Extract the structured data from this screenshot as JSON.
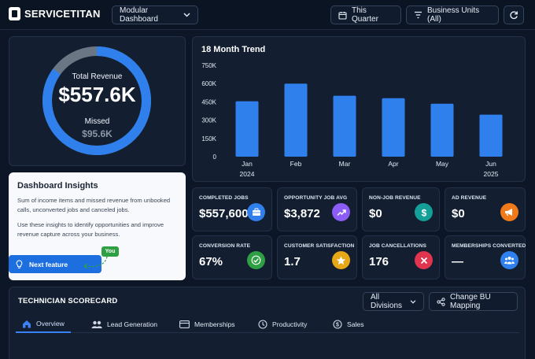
{
  "app": {
    "logo_text": "SERVICETITAN"
  },
  "header": {
    "dashboard_select": "Modular Dashboard",
    "date_filter": "This Quarter",
    "bu_filter": "Business Units (All)"
  },
  "revenue": {
    "total_label": "Total Revenue",
    "total_value": "$557.6K",
    "missed_label": "Missed",
    "missed_value": "$95.6K",
    "ring_fraction_captured": 0.85,
    "colors": {
      "captured": "#2f80ed",
      "missed": "#6b7685"
    }
  },
  "insights": {
    "title": "Dashboard Insights",
    "para1": "Sum of income items and missed revenue from unbooked calls, unconverted jobs and canceled jobs.",
    "para2": "Use these insights to identify opportunities and improve revenue capture across your business.",
    "button_label": "Next feature",
    "badge": "You"
  },
  "chart_data": {
    "type": "bar",
    "title": "18 Month Trend",
    "categories": [
      "Jan",
      "Feb",
      "Mar",
      "Apr",
      "May",
      "Jun"
    ],
    "category_years": [
      "2024",
      "",
      "",
      "",
      "",
      "2025"
    ],
    "values": [
      455,
      600,
      500,
      480,
      435,
      345
    ],
    "yticks": [
      "0",
      "150K",
      "300K",
      "450K",
      "600K",
      "750K"
    ],
    "ylim": [
      0,
      750
    ],
    "grid": false,
    "color": "#2f80ed"
  },
  "metrics": [
    {
      "label": "COMPLETED JOBS",
      "value": "$557,600",
      "icon": "briefcase-icon",
      "color": "#2f80ed"
    },
    {
      "label": "OPPORTUNITY JOB AVG",
      "value": "$3,872",
      "icon": "trend-up-icon",
      "color": "#8b5cf6"
    },
    {
      "label": "NON-JOB REVENUE",
      "value": "$0",
      "icon": "dollar-icon",
      "color": "#14a098"
    },
    {
      "label": "AD REVENUE",
      "value": "$0",
      "icon": "megaphone-icon",
      "color": "#f07a1a"
    },
    {
      "label": "CONVERSION RATE",
      "value": "67%",
      "icon": "check-icon",
      "color": "#2ea043"
    },
    {
      "label": "CUSTOMER SATISFACTION",
      "value": "1.7",
      "icon": "star-icon",
      "color": "#e6a817"
    },
    {
      "label": "JOB CANCELLATIONS",
      "value": "176",
      "icon": "x-icon",
      "color": "#e0344f"
    },
    {
      "label": "MEMBERSHIPS CONVERTED",
      "value": "—",
      "icon": "people-icon",
      "color": "#2f80ed"
    }
  ],
  "scorecard": {
    "title": "TECHNICIAN SCORECARD",
    "divisions": "All Divisions",
    "change_bu": "Change BU Mapping",
    "tabs": [
      "Overview",
      "Lead Generation",
      "Memberships",
      "Productivity",
      "Sales"
    ]
  }
}
